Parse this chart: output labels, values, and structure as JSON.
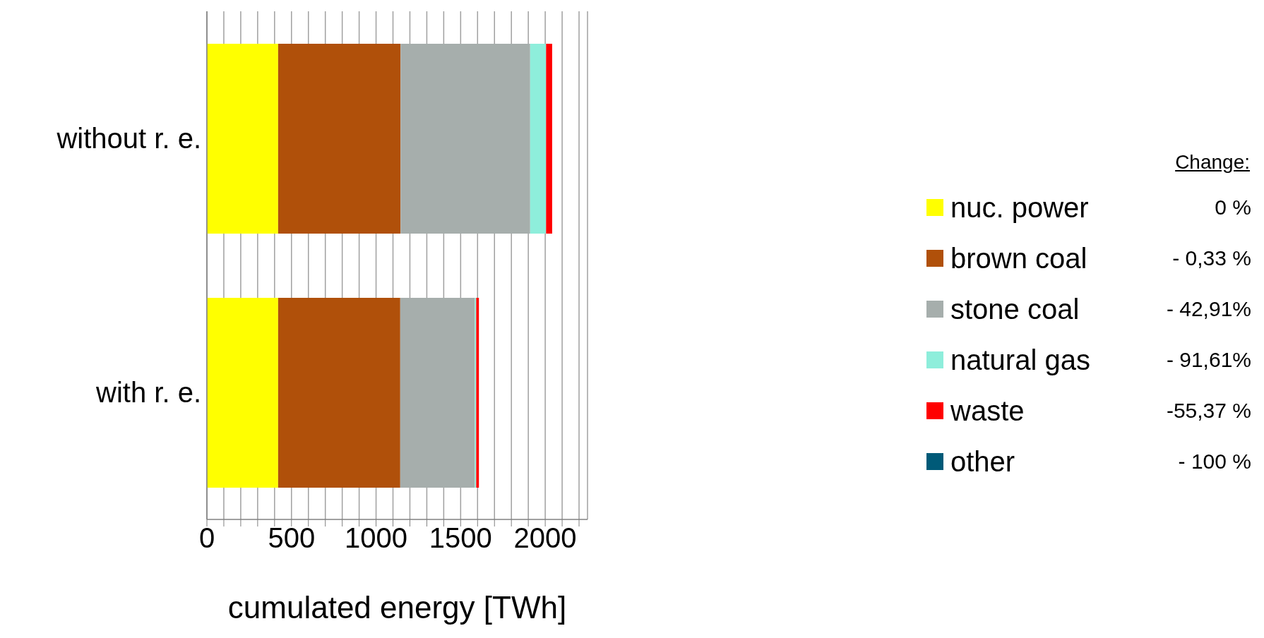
{
  "chart_data": {
    "type": "bar",
    "orientation": "horizontal",
    "stacked": true,
    "xlabel": "cumulated energy [TWh]",
    "categories": [
      "without r. e.",
      "with r. e."
    ],
    "series": [
      {
        "name": "nuc. power",
        "color": "#ffff00",
        "values": [
          421,
          421
        ]
      },
      {
        "name": "brown coal",
        "color": "#b0500a",
        "values": [
          724,
          722
        ]
      },
      {
        "name": "stone coal",
        "color": "#a6aeac",
        "values": [
          766,
          441
        ]
      },
      {
        "name": "natural gas",
        "color": "#8eeedb",
        "values": [
          94,
          8
        ]
      },
      {
        "name": "waste",
        "color": "#ff0000",
        "values": [
          36,
          16
        ]
      },
      {
        "name": "other",
        "color": "#005a78",
        "values": [
          0,
          0
        ]
      }
    ],
    "xlim": [
      0,
      2250
    ],
    "xticks": [
      0,
      {
        "value": 100,
        "label": null
      },
      {
        "value": 200,
        "label": null
      },
      {
        "value": 300,
        "label": null
      },
      {
        "value": 400,
        "label": null
      },
      500,
      {
        "value": 600,
        "label": null
      },
      {
        "value": 700,
        "label": null
      },
      {
        "value": 800,
        "label": null
      },
      {
        "value": 900,
        "label": null
      },
      1000,
      {
        "value": 1100,
        "label": null
      },
      {
        "value": 1200,
        "label": null
      },
      {
        "value": 1300,
        "label": null
      },
      {
        "value": 1400,
        "label": null
      },
      1500,
      {
        "value": 1600,
        "label": null
      },
      {
        "value": 1700,
        "label": null
      },
      {
        "value": 1800,
        "label": null
      },
      {
        "value": 1900,
        "label": null
      },
      2000,
      {
        "value": 2100,
        "label": null
      },
      {
        "value": 2200,
        "label": null
      }
    ],
    "grid": "x",
    "legend": "right",
    "annotations": [
      "Change:",
      "0 %",
      "- 0,33 %",
      "- 42,91%",
      "- 91,61%",
      "-55,37 %",
      "- 100 %"
    ]
  }
}
